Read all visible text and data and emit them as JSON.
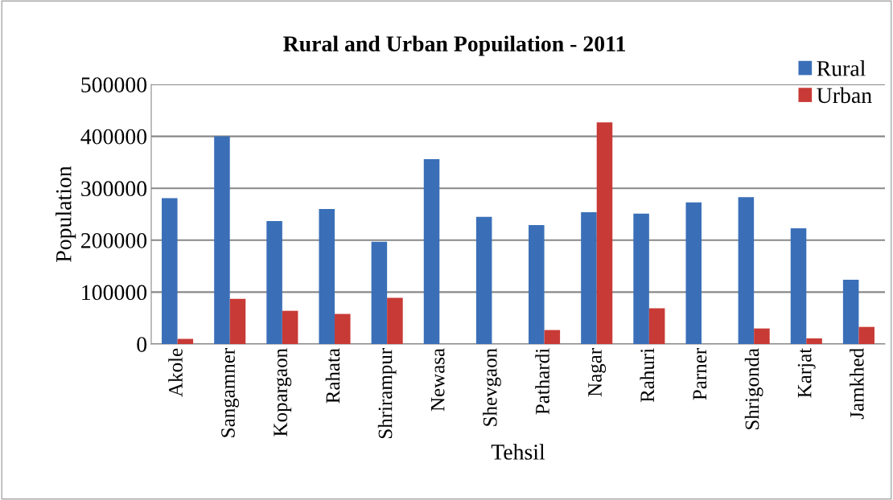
{
  "chart_data": {
    "type": "bar",
    "title": "Rural and Urban Popuilation - 2011",
    "xlabel": "Tehsil",
    "ylabel": "Population",
    "categories": [
      "Akole",
      "Sangamner",
      "Kopargaon",
      "Rahata",
      "Shrirampur",
      "Newasa",
      "Shevgaon",
      "Pathardi",
      "Nagar",
      "Rahuri",
      "Parner",
      "Shrigonda",
      "Karjat",
      "Jamkhed"
    ],
    "series": [
      {
        "name": "Rural",
        "color": "#3a6fb8",
        "values": [
          281000,
          400000,
          237000,
          260000,
          197000,
          356000,
          245000,
          229000,
          254000,
          251000,
          273000,
          283000,
          223000,
          124000
        ]
      },
      {
        "name": "Urban",
        "color": "#c83a36",
        "values": [
          10000,
          87000,
          64000,
          58000,
          89000,
          0,
          0,
          27000,
          427000,
          69000,
          0,
          30000,
          11000,
          33000
        ]
      }
    ],
    "ylim": [
      0,
      500000
    ],
    "yticks": [
      0,
      100000,
      200000,
      300000,
      400000,
      500000
    ],
    "grid": "y",
    "legend": "top right"
  }
}
